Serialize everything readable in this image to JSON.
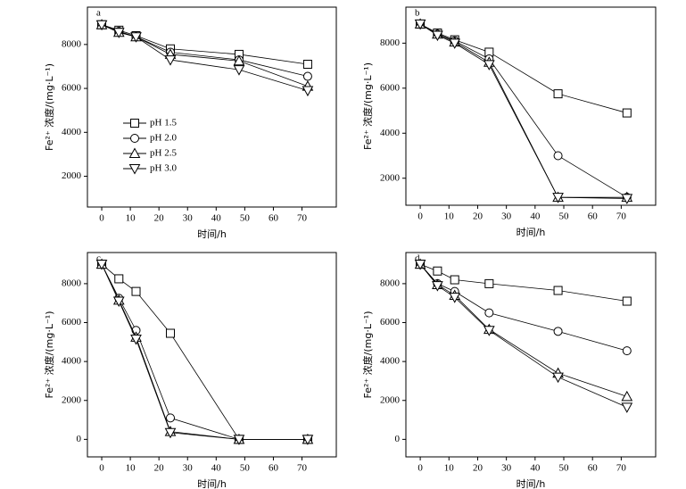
{
  "chart_data": [
    {
      "type": "line",
      "label": "a",
      "xlabel": "时间/h",
      "ylabel": "Fe²⁺ 浓度/(mg·L⁻¹)",
      "x": [
        0,
        6,
        12,
        24,
        48,
        72
      ],
      "xlim": [
        -5,
        82
      ],
      "ylim": [
        600,
        9700
      ],
      "xticks": [
        0,
        10,
        20,
        30,
        40,
        50,
        60,
        70
      ],
      "yticks": [
        2000,
        4000,
        6000,
        8000
      ],
      "legend": "center left",
      "color": "#000000",
      "series": [
        {
          "name": "pH 1.5",
          "marker": "square",
          "values": [
            8900,
            8650,
            8400,
            7800,
            7550,
            7100
          ]
        },
        {
          "name": "pH 2.0",
          "marker": "circle",
          "values": [
            8900,
            8600,
            8350,
            7650,
            7300,
            6550
          ]
        },
        {
          "name": "pH 2.5",
          "marker": "triangle-up",
          "values": [
            8900,
            8550,
            8350,
            7550,
            7250,
            6100
          ]
        },
        {
          "name": "pH 3.0",
          "marker": "triangle-down",
          "values": [
            8900,
            8550,
            8350,
            7300,
            6850,
            5900
          ]
        }
      ]
    },
    {
      "type": "line",
      "label": "b",
      "xlabel": "时间/h",
      "ylabel": "Fe²⁺ 浓度/(mg·L⁻¹)",
      "x": [
        0,
        6,
        12,
        24,
        48,
        72
      ],
      "xlim": [
        -5,
        82
      ],
      "ylim": [
        800,
        9600
      ],
      "xticks": [
        0,
        10,
        20,
        30,
        40,
        50,
        60,
        70
      ],
      "yticks": [
        2000,
        4000,
        6000,
        8000
      ],
      "color": "#000000",
      "series": [
        {
          "marker": "square",
          "values": [
            8850,
            8450,
            8150,
            7600,
            5750,
            4900
          ]
        },
        {
          "marker": "circle",
          "values": [
            8850,
            8400,
            8100,
            7300,
            3000,
            1150
          ]
        },
        {
          "marker": "triangle-up",
          "values": [
            8850,
            8400,
            8050,
            7150,
            1150,
            1150
          ]
        },
        {
          "marker": "triangle-down",
          "values": [
            8850,
            8350,
            8000,
            7050,
            1150,
            1100
          ]
        }
      ]
    },
    {
      "type": "line",
      "label": "c",
      "xlabel": "时间/h",
      "ylabel": "Fe²⁺ 浓度/(mg·L⁻¹)",
      "x": [
        0,
        6,
        12,
        24,
        48,
        72
      ],
      "xlim": [
        -5,
        82
      ],
      "ylim": [
        -900,
        9600
      ],
      "xticks": [
        0,
        10,
        20,
        30,
        40,
        50,
        60,
        70
      ],
      "yticks": [
        0,
        2000,
        4000,
        6000,
        8000
      ],
      "color": "#000000",
      "series": [
        {
          "marker": "square",
          "values": [
            9000,
            8250,
            7600,
            5450,
            0,
            0
          ]
        },
        {
          "marker": "circle",
          "values": [
            9000,
            7250,
            5600,
            1100,
            0,
            0
          ]
        },
        {
          "marker": "triangle-up",
          "values": [
            9000,
            7150,
            5250,
            400,
            0,
            0
          ]
        },
        {
          "marker": "triangle-down",
          "values": [
            9000,
            7100,
            5150,
            350,
            0,
            0
          ]
        }
      ]
    },
    {
      "type": "line",
      "label": "d",
      "xlabel": "时间/h",
      "ylabel": "Fe²⁺ 浓度/(mg·L⁻¹)",
      "x": [
        0,
        6,
        12,
        24,
        48,
        72
      ],
      "xlim": [
        -5,
        82
      ],
      "ylim": [
        -900,
        9600
      ],
      "xticks": [
        0,
        10,
        20,
        30,
        40,
        50,
        60,
        70
      ],
      "yticks": [
        0,
        2000,
        4000,
        6000,
        8000
      ],
      "color": "#000000",
      "series": [
        {
          "marker": "square",
          "values": [
            9000,
            8650,
            8200,
            8000,
            7650,
            7100
          ]
        },
        {
          "marker": "circle",
          "values": [
            9000,
            8000,
            7600,
            6500,
            5550,
            4550
          ]
        },
        {
          "marker": "triangle-up",
          "values": [
            9000,
            7950,
            7400,
            5650,
            3400,
            2200
          ]
        },
        {
          "marker": "triangle-down",
          "values": [
            9000,
            7900,
            7300,
            5600,
            3200,
            1650
          ]
        }
      ]
    }
  ]
}
